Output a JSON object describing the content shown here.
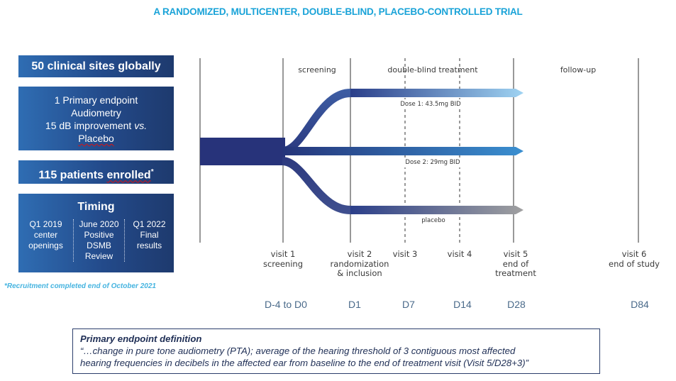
{
  "title": "A RANDOMIZED, MULTICENTER, DOUBLE-BLIND, PLACEBO-CONTROLLED TRIAL",
  "left_panel": {
    "sites": "50 clinical sites globally",
    "endpoint_lines": [
      "1 Primary endpoint",
      "Audiometry",
      "15 dB improvement ",
      "vs.",
      "Placebo"
    ],
    "patients_prefix": "115 patients ",
    "patients_word": "enrolled",
    "patients_suffix": "*",
    "timing": {
      "title": "Timing",
      "columns": [
        {
          "lines": [
            "Q1 2019",
            "center",
            "openings"
          ]
        },
        {
          "lines": [
            "June 2020",
            "Positive",
            "DSMB",
            "Review"
          ]
        },
        {
          "lines": [
            "Q1 2022",
            "Final",
            "results"
          ]
        }
      ]
    },
    "footnote": "*Recruitment completed end of October 2021"
  },
  "phases": {
    "screening": "screening",
    "treatment": "double-blind treatment",
    "followup": "follow-up"
  },
  "arms": [
    {
      "label": "Dose 1: 43.5mg BID",
      "color_start": "#2b3f8a",
      "color_end": "#9fd3f2"
    },
    {
      "label": "Dose 2: 29mg BID",
      "color_start": "#25357a",
      "color_end": "#3a8fd0"
    },
    {
      "label": "placebo",
      "color_start": "#2b3f8a",
      "color_end": "#a0a0a0"
    }
  ],
  "visits": [
    {
      "lines": [
        "visit 1",
        "screening"
      ],
      "day": "D-4 to D0"
    },
    {
      "lines": [
        "visit 2",
        "randomization",
        "& inclusion"
      ],
      "day": "D1"
    },
    {
      "lines": [
        "visit 3"
      ],
      "day": "D7"
    },
    {
      "lines": [
        "visit 4"
      ],
      "day": "D14"
    },
    {
      "lines": [
        "visit 5",
        "end of",
        "treatment"
      ],
      "day": "D28"
    },
    {
      "lines": [
        "visit 6",
        "end of study"
      ],
      "day": "D84"
    }
  ],
  "definition": {
    "heading": "Primary endpoint definition",
    "line1": "“…change in pure tone audiometry (PTA); average of the hearing threshold of 3 contiguous most affected",
    "line2": "hearing frequencies in decibels in the affected ear from baseline to the end of treatment visit (Visit 5/D28+3)”"
  },
  "colors": {
    "title": "#1aa3d8",
    "box_dark": "#1e3a6e",
    "box_light": "#2f6db3",
    "trunk": "#27337a"
  }
}
